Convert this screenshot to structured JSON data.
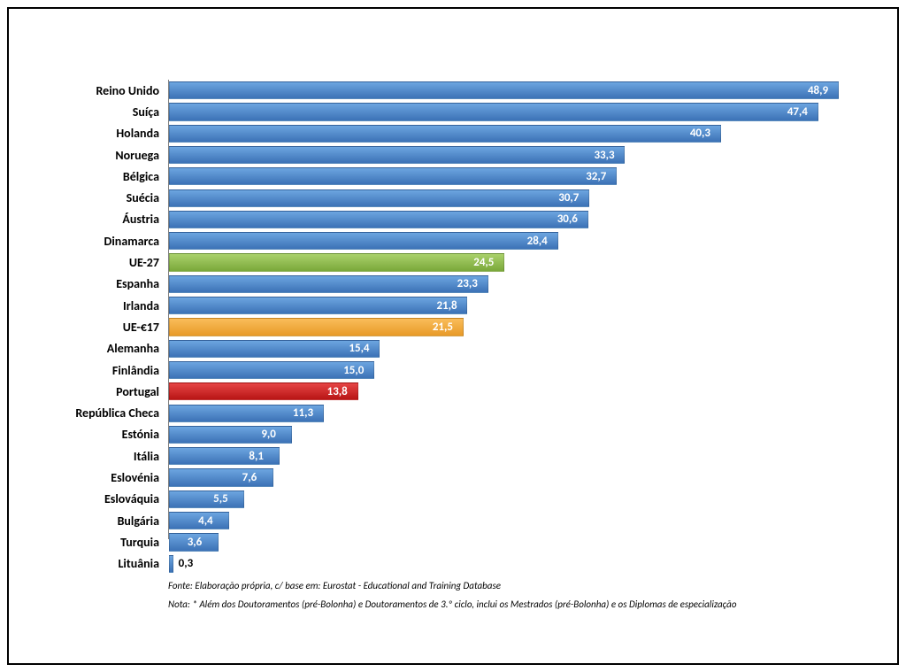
{
  "chart": {
    "type": "bar",
    "orientation": "horizontal",
    "xmax": 50,
    "row_height": 24.3,
    "background_color": "#ffffff",
    "axis_color": "#808080",
    "label_fontsize": 14,
    "label_fontweight": "bold",
    "label_color": "#000000",
    "value_fontsize": 13,
    "value_fontweight": "bold",
    "value_inside_color": "#ffffff",
    "value_outside_color": "#000000",
    "value_outside_threshold": 2.0,
    "bar_gradient": {
      "default": [
        "#6ca5e0",
        "#3c72b6"
      ],
      "ue27": [
        "#aad16b",
        "#7aa83a"
      ],
      "ue17": [
        "#f9bd5a",
        "#e89a28"
      ],
      "portugal": [
        "#e64545",
        "#b81515"
      ]
    },
    "data": [
      {
        "label": "Reino Unido",
        "value": 48.9,
        "display": "48,9",
        "style": "default"
      },
      {
        "label": "Suíça",
        "value": 47.4,
        "display": "47,4",
        "style": "default"
      },
      {
        "label": "Holanda",
        "value": 40.3,
        "display": "40,3",
        "style": "default"
      },
      {
        "label": "Noruega",
        "value": 33.3,
        "display": "33,3",
        "style": "default"
      },
      {
        "label": "Bélgica",
        "value": 32.7,
        "display": "32,7",
        "style": "default"
      },
      {
        "label": "Suécia",
        "value": 30.7,
        "display": "30,7",
        "style": "default"
      },
      {
        "label": "Áustria",
        "value": 30.6,
        "display": "30,6",
        "style": "default"
      },
      {
        "label": "Dinamarca",
        "value": 28.4,
        "display": "28,4",
        "style": "default"
      },
      {
        "label": "UE-27",
        "value": 24.5,
        "display": "24,5",
        "style": "ue27"
      },
      {
        "label": "Espanha",
        "value": 23.3,
        "display": "23,3",
        "style": "default"
      },
      {
        "label": "Irlanda",
        "value": 21.8,
        "display": "21,8",
        "style": "default"
      },
      {
        "label": "UE-€17",
        "value": 21.5,
        "display": "21,5",
        "style": "ue17"
      },
      {
        "label": "Alemanha",
        "value": 15.4,
        "display": "15,4",
        "style": "default"
      },
      {
        "label": "Finlândia",
        "value": 15.0,
        "display": "15,0",
        "style": "default"
      },
      {
        "label": "Portugal",
        "value": 13.8,
        "display": "13,8",
        "style": "portugal"
      },
      {
        "label": "República Checa",
        "value": 11.3,
        "display": "11,3",
        "style": "default"
      },
      {
        "label": "Estónia",
        "value": 9.0,
        "display": "9,0",
        "style": "default"
      },
      {
        "label": "Itália",
        "value": 8.1,
        "display": "8,1",
        "style": "default"
      },
      {
        "label": "Eslovénia",
        "value": 7.6,
        "display": "7,6",
        "style": "default"
      },
      {
        "label": "Eslováquia",
        "value": 5.5,
        "display": "5,5",
        "style": "default"
      },
      {
        "label": "Bulgária",
        "value": 4.4,
        "display": "4,4",
        "style": "default"
      },
      {
        "label": "Turquia",
        "value": 3.6,
        "display": "3,6",
        "style": "default"
      },
      {
        "label": "Lituânia",
        "value": 0.3,
        "display": "0,3",
        "style": "default"
      }
    ]
  },
  "footnotes": {
    "source": "Fonte: Elaboração própria, c/ base em: Eurostat - Educational and Training Database",
    "note": "Nota: * Além dos Doutoramentos (pré-Bolonha) e Doutoramentos de 3.º ciclo, inclui os Mestrados (pré-Bolonha) e os Diplomas de especialização"
  }
}
